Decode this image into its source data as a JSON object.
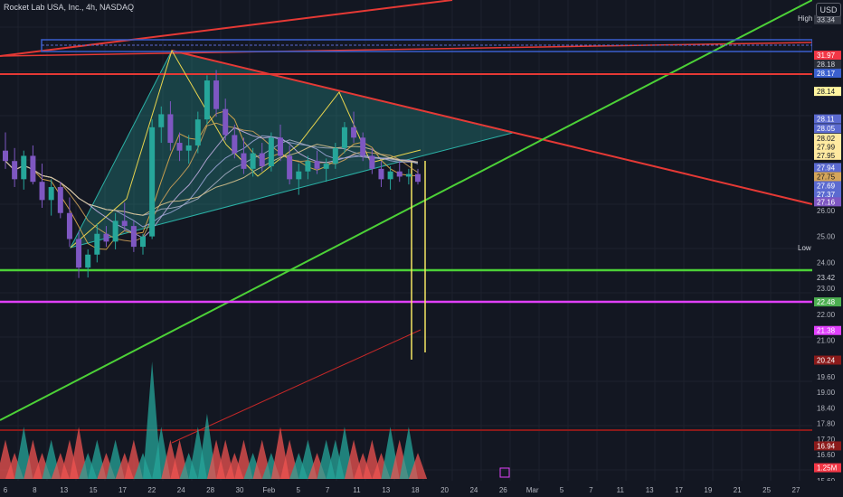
{
  "legend": "Rocket Lab USA, Inc., 4h, NASDAQ",
  "currency": "USD",
  "high_tag": "High",
  "low_tag": "Low",
  "chart_data": {
    "type": "candlestick",
    "ylim": [
      15.6,
      33.4
    ],
    "xlabels": [
      "6",
      "8",
      "13",
      "15",
      "17",
      "22",
      "24",
      "28",
      "30",
      "Feb",
      "5",
      "7",
      "11",
      "13",
      "18",
      "20",
      "24",
      "26",
      "Mar",
      "5",
      "7",
      "11",
      "13",
      "17",
      "19",
      "21",
      "25",
      "27"
    ],
    "price_ticks": [
      "26.00",
      "25.00",
      "24.00",
      "23.00",
      "22.00",
      "21.00",
      "19.60",
      "19.00",
      "18.40",
      "17.80",
      "17.20",
      "16.60",
      "15.60"
    ],
    "badges": [
      {
        "label": "33.34",
        "color": "#363a45",
        "text": "#d1d4dc",
        "price": 33.34
      },
      {
        "label": "31.97",
        "color": "#f23645",
        "text": "#ffffff",
        "price": 31.97
      },
      {
        "label": "28.18",
        "color": "#2a2e39",
        "text": "#d1d4dc",
        "price": 31.62
      },
      {
        "label": "28.17",
        "color": "#3a5fcd",
        "text": "#ffffff",
        "price": 31.28
      },
      {
        "label": "28.14",
        "color": "#fff5a0",
        "text": "#131722",
        "price": 30.58
      },
      {
        "label": "28.11",
        "color": "#5b6ad0",
        "text": "#ffffff",
        "price": 29.52
      },
      {
        "label": "28.05",
        "color": "#5b6ad0",
        "text": "#ffffff",
        "price": 29.15
      },
      {
        "label": "28.02",
        "color": "#ffe9a0",
        "text": "#131722",
        "price": 28.78
      },
      {
        "label": "27.99",
        "color": "#ffe9a0",
        "text": "#131722",
        "price": 28.45
      },
      {
        "label": "27.95",
        "color": "#ffe9a0",
        "text": "#131722",
        "price": 28.12
      },
      {
        "label": "27.94",
        "color": "#5b6ad0",
        "text": "#ffffff",
        "price": 27.65
      },
      {
        "label": "27.75",
        "color": "#d4a55a",
        "text": "#131722",
        "price": 27.3
      },
      {
        "label": "27.69",
        "color": "#5b6ad0",
        "text": "#ffffff",
        "price": 26.95
      },
      {
        "label": "27.37",
        "color": "#5b6ad0",
        "text": "#ffffff",
        "price": 26.62
      },
      {
        "label": "27.16",
        "color": "#7e57c2",
        "text": "#ffffff",
        "price": 26.33
      },
      {
        "label": "23.42",
        "color": "#131722",
        "text": "#d1d4dc",
        "price": 23.42
      },
      {
        "label": "22.48",
        "color": "#4caf50",
        "text": "#ffffff",
        "price": 22.48
      },
      {
        "label": "21.38",
        "color": "#e040fb",
        "text": "#ffffff",
        "price": 21.38
      },
      {
        "label": "20.24",
        "color": "#8b1a1a",
        "text": "#ffffff",
        "price": 20.24
      },
      {
        "label": "16.94",
        "color": "#8b1a1a",
        "text": "#ffffff",
        "price": 16.94
      },
      {
        "label": "1.25M",
        "color": "#f23645",
        "text": "#ffffff",
        "price": 16.1
      }
    ],
    "candles": [
      {
        "o": 28.3,
        "h": 29.0,
        "l": 27.6,
        "c": 27.9
      },
      {
        "o": 27.9,
        "h": 28.4,
        "l": 26.9,
        "c": 27.2
      },
      {
        "o": 27.2,
        "h": 28.3,
        "l": 26.8,
        "c": 28.1
      },
      {
        "o": 28.1,
        "h": 28.5,
        "l": 27.0,
        "c": 27.1
      },
      {
        "o": 27.1,
        "h": 27.8,
        "l": 26.1,
        "c": 26.4
      },
      {
        "o": 26.4,
        "h": 27.2,
        "l": 25.8,
        "c": 26.9
      },
      {
        "o": 26.9,
        "h": 27.1,
        "l": 25.7,
        "c": 25.9
      },
      {
        "o": 25.9,
        "h": 26.5,
        "l": 24.6,
        "c": 24.9
      },
      {
        "o": 24.9,
        "h": 25.2,
        "l": 23.4,
        "c": 23.8
      },
      {
        "o": 23.8,
        "h": 24.5,
        "l": 23.42,
        "c": 24.3
      },
      {
        "o": 24.3,
        "h": 25.5,
        "l": 24.0,
        "c": 25.1
      },
      {
        "o": 25.1,
        "h": 25.4,
        "l": 24.6,
        "c": 24.8
      },
      {
        "o": 24.8,
        "h": 25.9,
        "l": 24.5,
        "c": 25.6
      },
      {
        "o": 25.6,
        "h": 26.3,
        "l": 25.2,
        "c": 25.4
      },
      {
        "o": 25.4,
        "h": 25.6,
        "l": 24.4,
        "c": 24.6
      },
      {
        "o": 24.6,
        "h": 25.1,
        "l": 24.3,
        "c": 25.0
      },
      {
        "o": 25.0,
        "h": 29.5,
        "l": 24.9,
        "c": 29.2
      },
      {
        "o": 29.2,
        "h": 30.0,
        "l": 28.6,
        "c": 29.7
      },
      {
        "o": 29.7,
        "h": 30.2,
        "l": 28.3,
        "c": 28.6
      },
      {
        "o": 28.6,
        "h": 29.0,
        "l": 27.9,
        "c": 28.3
      },
      {
        "o": 28.3,
        "h": 28.9,
        "l": 27.8,
        "c": 28.5
      },
      {
        "o": 28.5,
        "h": 29.8,
        "l": 28.2,
        "c": 29.5
      },
      {
        "o": 29.5,
        "h": 31.2,
        "l": 29.3,
        "c": 31.0
      },
      {
        "o": 31.0,
        "h": 31.4,
        "l": 29.6,
        "c": 29.9
      },
      {
        "o": 29.9,
        "h": 30.3,
        "l": 28.7,
        "c": 28.9
      },
      {
        "o": 28.9,
        "h": 29.3,
        "l": 28.0,
        "c": 28.2
      },
      {
        "o": 28.2,
        "h": 28.8,
        "l": 27.4,
        "c": 27.6
      },
      {
        "o": 27.6,
        "h": 28.4,
        "l": 27.3,
        "c": 28.2
      },
      {
        "o": 28.2,
        "h": 28.6,
        "l": 27.5,
        "c": 27.7
      },
      {
        "o": 27.7,
        "h": 29.0,
        "l": 27.5,
        "c": 28.8
      },
      {
        "o": 28.8,
        "h": 29.3,
        "l": 27.9,
        "c": 28.1
      },
      {
        "o": 28.1,
        "h": 28.5,
        "l": 27.0,
        "c": 27.2
      },
      {
        "o": 27.2,
        "h": 27.8,
        "l": 26.6,
        "c": 27.5
      },
      {
        "o": 27.5,
        "h": 28.1,
        "l": 27.2,
        "c": 27.9
      },
      {
        "o": 27.9,
        "h": 28.3,
        "l": 27.4,
        "c": 27.6
      },
      {
        "o": 27.6,
        "h": 28.0,
        "l": 27.1,
        "c": 27.8
      },
      {
        "o": 27.8,
        "h": 28.6,
        "l": 27.6,
        "c": 28.4
      },
      {
        "o": 28.4,
        "h": 29.4,
        "l": 28.2,
        "c": 29.2
      },
      {
        "o": 29.2,
        "h": 29.8,
        "l": 28.6,
        "c": 28.8
      },
      {
        "o": 28.8,
        "h": 29.0,
        "l": 27.9,
        "c": 28.1
      },
      {
        "o": 28.1,
        "h": 28.4,
        "l": 27.4,
        "c": 27.6
      },
      {
        "o": 27.6,
        "h": 27.9,
        "l": 26.9,
        "c": 27.2
      },
      {
        "o": 27.2,
        "h": 27.7,
        "l": 26.8,
        "c": 27.5
      },
      {
        "o": 27.5,
        "h": 27.9,
        "l": 27.1,
        "c": 27.3
      },
      {
        "o": 27.3,
        "h": 27.6,
        "l": 27.0,
        "c": 27.4
      },
      {
        "o": 27.4,
        "h": 27.6,
        "l": 27.0,
        "c": 27.1
      }
    ],
    "volume": [
      3,
      2,
      4,
      3,
      2,
      3,
      2,
      3,
      4,
      2,
      3,
      2,
      3,
      2,
      3,
      2,
      9,
      4,
      3,
      3,
      2,
      4,
      5,
      3,
      3,
      2,
      3,
      2,
      3,
      2,
      4,
      3,
      2,
      3,
      2,
      3,
      3,
      4,
      3,
      2,
      3,
      2,
      4,
      3,
      4,
      2
    ]
  }
}
